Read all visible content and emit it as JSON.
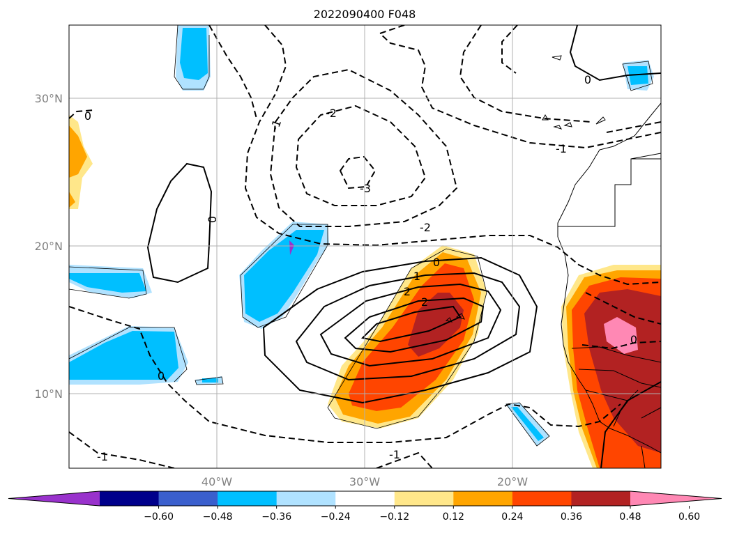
{
  "title": "2022090400 F048",
  "map": {
    "lat_labels": [
      "30°N",
      "20°N",
      "10°N"
    ],
    "lon_labels": [
      "40°W",
      "30°W",
      "20°W"
    ],
    "lat_ticks": [
      30,
      20,
      10
    ],
    "lon_ticks": [
      -40,
      -30,
      -20
    ],
    "extent": {
      "lon_min": -50,
      "lon_max": -10,
      "lat_min": 5,
      "lat_max": 35
    },
    "gridlines": true,
    "contour_labels": [
      "0",
      "0",
      "0",
      "0",
      "0",
      "0",
      "-1",
      "-1",
      "-1",
      "-1",
      "-2",
      "-2",
      "-3",
      "1",
      "2",
      "2"
    ]
  },
  "colorbar": {
    "ticks": [
      "−0.60",
      "−0.48",
      "−0.36",
      "−0.24",
      "−0.12",
      "0.12",
      "0.24",
      "0.36",
      "0.48",
      "0.60"
    ],
    "colors": [
      "#9932cc",
      "#00008b",
      "#3a5fcd",
      "#00bfff",
      "#b0e2ff",
      "#ffffff",
      "#ffe78a",
      "#ffa500",
      "#ff4500",
      "#b22222",
      "#ff88b4"
    ]
  }
}
